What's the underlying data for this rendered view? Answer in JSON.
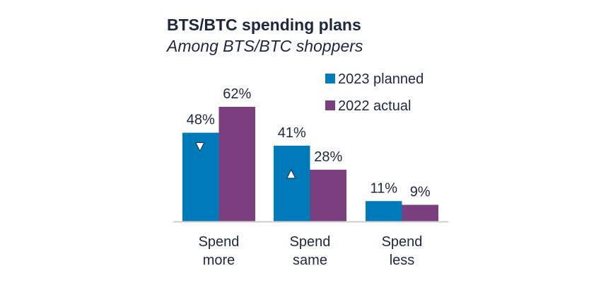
{
  "chart_data": {
    "type": "bar",
    "title": "BTS/BTC spending plans",
    "subtitle": "Among BTS/BTC shoppers",
    "categories": [
      [
        "Spend",
        "more"
      ],
      [
        "Spend",
        "same"
      ],
      [
        "Spend",
        "less"
      ]
    ],
    "series": [
      {
        "name": "2023 planned",
        "values": [
          48,
          41,
          11
        ],
        "labels": [
          "48%",
          "41%",
          "11%"
        ],
        "color": "#007ab8",
        "markers": [
          "down",
          "up",
          null
        ]
      },
      {
        "name": "2022 actual",
        "values": [
          62,
          28,
          9
        ],
        "labels": [
          "62%",
          "28%",
          "9%"
        ],
        "color": "#7b3f7f"
      }
    ],
    "ylim": [
      0,
      62
    ],
    "grid": false,
    "legend": "top-right",
    "xlabel": "",
    "ylabel": ""
  }
}
